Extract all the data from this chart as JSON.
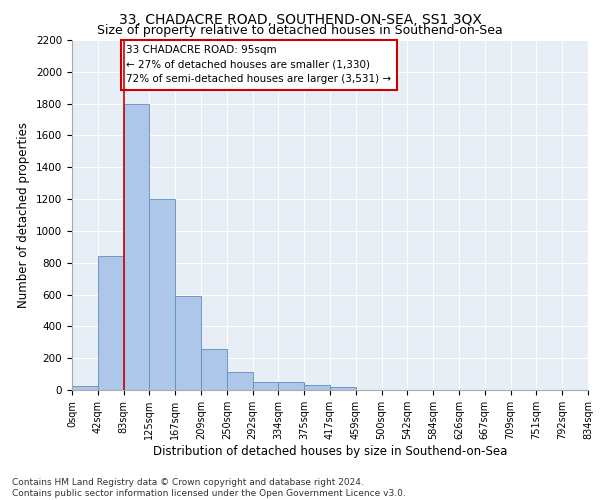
{
  "title": "33, CHADACRE ROAD, SOUTHEND-ON-SEA, SS1 3QX",
  "subtitle": "Size of property relative to detached houses in Southend-on-Sea",
  "xlabel": "Distribution of detached houses by size in Southend-on-Sea",
  "ylabel": "Number of detached properties",
  "bar_values": [
    25,
    840,
    1800,
    1200,
    590,
    260,
    115,
    50,
    48,
    32,
    18,
    0,
    0,
    0,
    0,
    0,
    0,
    0,
    0,
    0
  ],
  "bin_labels": [
    "0sqm",
    "42sqm",
    "83sqm",
    "125sqm",
    "167sqm",
    "209sqm",
    "250sqm",
    "292sqm",
    "334sqm",
    "375sqm",
    "417sqm",
    "459sqm",
    "500sqm",
    "542sqm",
    "584sqm",
    "626sqm",
    "667sqm",
    "709sqm",
    "751sqm",
    "792sqm",
    "834sqm"
  ],
  "bar_color": "#aec6e8",
  "bar_edge_color": "#5a8fc2",
  "vline_x": 2,
  "vline_color": "#cc0000",
  "annotation_text": "33 CHADACRE ROAD: 95sqm\n← 27% of detached houses are smaller (1,330)\n72% of semi-detached houses are larger (3,531) →",
  "annotation_box_color": "#cc0000",
  "ylim": [
    0,
    2200
  ],
  "yticks": [
    0,
    200,
    400,
    600,
    800,
    1000,
    1200,
    1400,
    1600,
    1800,
    2000,
    2200
  ],
  "bg_color": "#e8eef5",
  "footer_line1": "Contains HM Land Registry data © Crown copyright and database right 2024.",
  "footer_line2": "Contains public sector information licensed under the Open Government Licence v3.0.",
  "title_fontsize": 10,
  "subtitle_fontsize": 9,
  "xlabel_fontsize": 8.5,
  "ylabel_fontsize": 8.5,
  "footer_fontsize": 6.5,
  "annot_fontsize": 7.5,
  "tick_fontsize": 7,
  "ytick_fontsize": 7.5
}
